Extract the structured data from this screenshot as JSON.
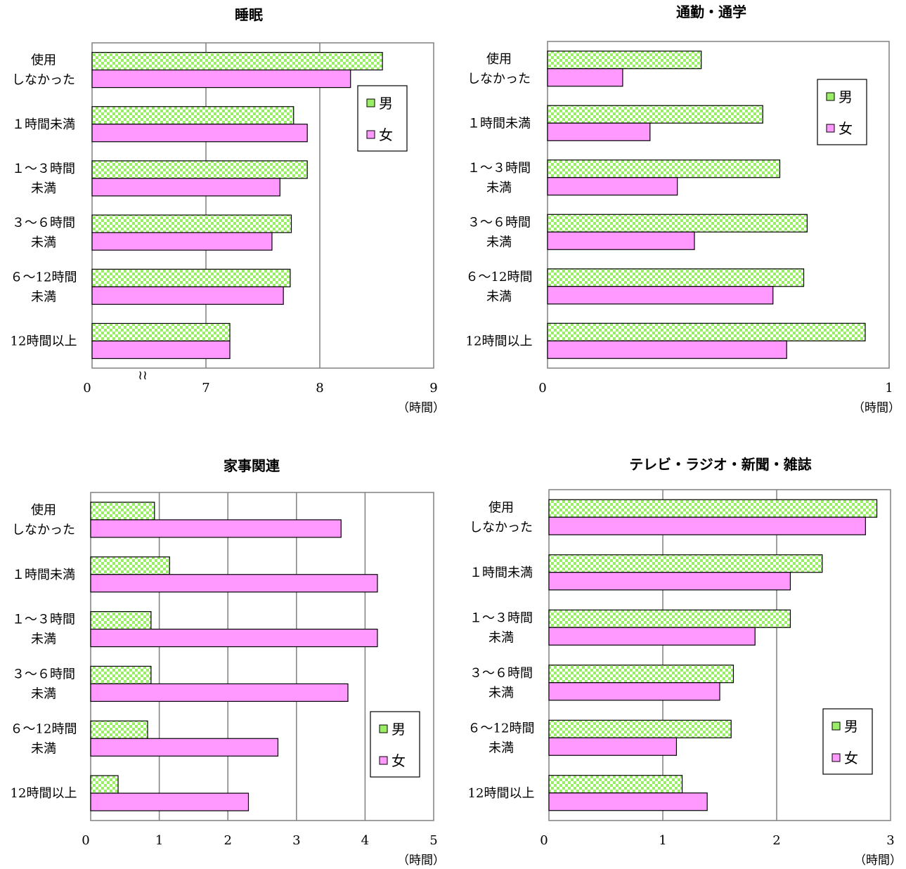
{
  "chart_data": [
    {
      "type": "bar",
      "title": "睡眠",
      "categories": [
        [
          "使用",
          "しなかった"
        ],
        [
          "１時間未満"
        ],
        [
          "１～３時間",
          "未満"
        ],
        [
          "３～６時間",
          "未満"
        ],
        [
          "６～12時間",
          "未満"
        ],
        [
          "12時間以上"
        ]
      ],
      "xlim": [
        6,
        9
      ],
      "ticks": [
        0,
        7,
        8,
        9
      ],
      "axis_break": true,
      "unit": "（時間）",
      "legend": "inside-upper-right",
      "series": [
        {
          "name": "男",
          "values": [
            8.55,
            7.77,
            7.89,
            7.75,
            7.74,
            7.21
          ],
          "color": "#99ee66",
          "pattern": "checker"
        },
        {
          "name": "女",
          "values": [
            8.27,
            7.89,
            7.65,
            7.58,
            7.68,
            7.21
          ],
          "color": "#ff99ff",
          "pattern": "solid"
        }
      ]
    },
    {
      "type": "bar",
      "title": "通勤・通学",
      "categories": [
        [
          "使用",
          "しなかった"
        ],
        [
          "１時間未満"
        ],
        [
          "１～３時間",
          "未満"
        ],
        [
          "３～６時間",
          "未満"
        ],
        [
          "６～12時間",
          "未満"
        ],
        [
          "12時間以上"
        ]
      ],
      "xlim": [
        0,
        1
      ],
      "ticks": [
        0,
        1
      ],
      "unit": "（時間）",
      "legend": "inside-upper-right",
      "series": [
        {
          "name": "男",
          "values": [
            0.45,
            0.63,
            0.68,
            0.76,
            0.75,
            0.93
          ],
          "color": "#99ee66",
          "pattern": "checker"
        },
        {
          "name": "女",
          "values": [
            0.22,
            0.3,
            0.38,
            0.43,
            0.66,
            0.7
          ],
          "color": "#ff99ff",
          "pattern": "solid"
        }
      ]
    },
    {
      "type": "bar",
      "title": "家事関連",
      "categories": [
        [
          "使用",
          "しなかった"
        ],
        [
          "１時間未満"
        ],
        [
          "１～３時間",
          "未満"
        ],
        [
          "３～６時間",
          "未満"
        ],
        [
          "６～12時間",
          "未満"
        ],
        [
          "12時間以上"
        ]
      ],
      "xlim": [
        0,
        5
      ],
      "ticks": [
        0,
        1,
        2,
        3,
        4,
        5
      ],
      "unit": "（時間）",
      "legend": "inside-lower-right",
      "series": [
        {
          "name": "男",
          "values": [
            0.93,
            1.15,
            0.88,
            0.88,
            0.83,
            0.4
          ],
          "color": "#99ee66",
          "pattern": "checker"
        },
        {
          "name": "女",
          "values": [
            3.65,
            4.18,
            4.18,
            3.75,
            2.73,
            2.3
          ],
          "color": "#ff99ff",
          "pattern": "solid"
        }
      ]
    },
    {
      "type": "bar",
      "title": "テレビ・ラジオ・新聞・雑誌",
      "categories": [
        [
          "使用",
          "しなかった"
        ],
        [
          "１時間未満"
        ],
        [
          "１～３時間",
          "未満"
        ],
        [
          "３～６時間",
          "未満"
        ],
        [
          "６～12時間",
          "未満"
        ],
        [
          "12時間以上"
        ]
      ],
      "xlim": [
        0,
        3
      ],
      "ticks": [
        0,
        1,
        2,
        3
      ],
      "unit": "（時間）",
      "legend": "inside-lower-right",
      "series": [
        {
          "name": "男",
          "values": [
            2.88,
            2.4,
            2.12,
            1.62,
            1.6,
            1.17
          ],
          "color": "#99ee66",
          "pattern": "checker"
        },
        {
          "name": "女",
          "values": [
            2.78,
            2.12,
            1.81,
            1.5,
            1.12,
            1.39
          ],
          "color": "#ff99ff",
          "pattern": "solid"
        }
      ]
    }
  ]
}
